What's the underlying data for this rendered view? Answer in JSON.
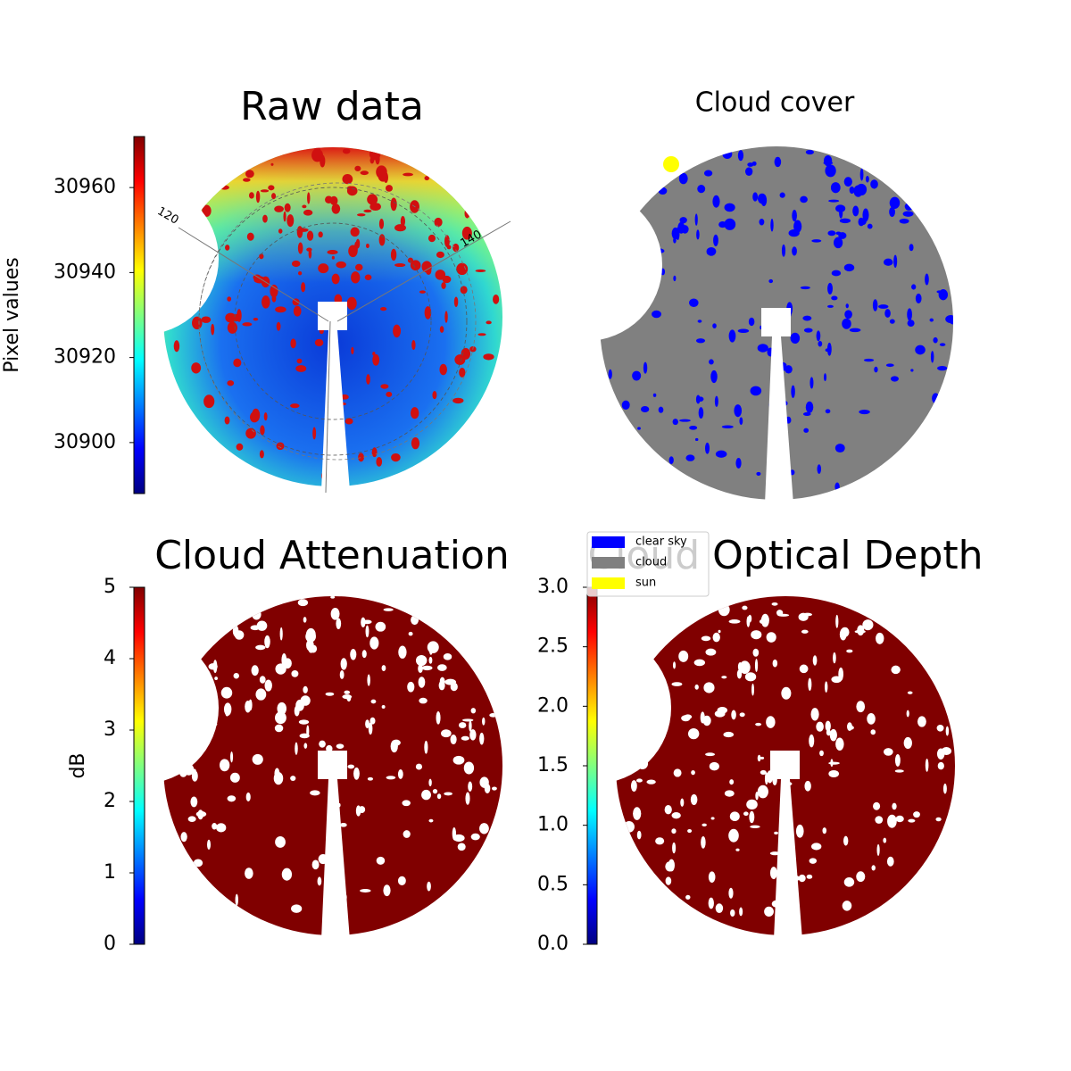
{
  "chart_data": [
    {
      "type": "image",
      "title": "Raw data",
      "colorbar": {
        "label": "Pixel values",
        "lim": [
          30888,
          30972
        ],
        "ticks": [
          30900,
          30920,
          30940,
          30960
        ]
      },
      "annotations": [
        "120",
        "140"
      ]
    },
    {
      "type": "image",
      "title": "Cloud cover",
      "legend": [
        {
          "name": "clear sky",
          "color": "#0000ff"
        },
        {
          "name": "cloud",
          "color": "#808080"
        },
        {
          "name": "sun",
          "color": "#ffff00"
        }
      ]
    },
    {
      "type": "image",
      "title": "Cloud Attenuation",
      "color": "#800000",
      "colorbar": {
        "label": "dB",
        "lim": [
          0,
          5
        ],
        "ticks": [
          0,
          1,
          2,
          3,
          4,
          5
        ]
      }
    },
    {
      "type": "image",
      "title": "Cloud Optical Depth",
      "color": "#800000",
      "colorbar": {
        "lim": [
          0,
          3
        ],
        "ticks": [
          {
            "value": 0,
            "label": "0.0"
          },
          {
            "value": 0.5,
            "label": "0.5"
          },
          {
            "value": 1,
            "label": "1.0"
          },
          {
            "value": 1.5,
            "label": "1.5"
          },
          {
            "value": 2,
            "label": "2.0"
          },
          {
            "value": 2.5,
            "label": "2.5"
          },
          {
            "value": 3,
            "label": "3.0"
          }
        ]
      }
    }
  ]
}
